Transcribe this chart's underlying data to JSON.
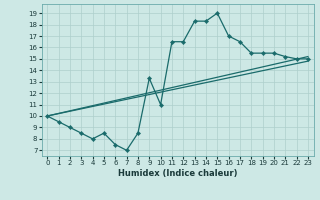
{
  "xlabel": "Humidex (Indice chaleur)",
  "xlim": [
    -0.5,
    23.5
  ],
  "ylim": [
    6.5,
    19.8
  ],
  "yticks": [
    7,
    8,
    9,
    10,
    11,
    12,
    13,
    14,
    15,
    16,
    17,
    18,
    19
  ],
  "xticks": [
    0,
    1,
    2,
    3,
    4,
    5,
    6,
    7,
    8,
    9,
    10,
    11,
    12,
    13,
    14,
    15,
    16,
    17,
    18,
    19,
    20,
    21,
    22,
    23
  ],
  "bg_color": "#cde8e5",
  "grid_color": "#aecfcc",
  "line_color": "#1a6b6b",
  "line1_x": [
    0,
    1,
    2,
    3,
    4,
    5,
    6,
    7,
    8,
    9,
    10,
    11,
    12,
    13,
    14,
    15,
    16,
    17,
    18,
    19,
    20,
    21,
    22,
    23
  ],
  "line1_y": [
    10.0,
    9.5,
    9.0,
    8.5,
    8.0,
    8.5,
    7.5,
    7.0,
    8.5,
    13.3,
    11.0,
    16.5,
    16.5,
    18.3,
    18.3,
    19.0,
    17.0,
    16.5,
    15.5,
    15.5,
    15.5,
    15.2,
    15.0,
    15.0
  ],
  "line2_x": [
    0,
    23
  ],
  "line2_y": [
    10.0,
    14.8
  ],
  "line3_x": [
    0,
    23
  ],
  "line3_y": [
    10.0,
    15.2
  ]
}
